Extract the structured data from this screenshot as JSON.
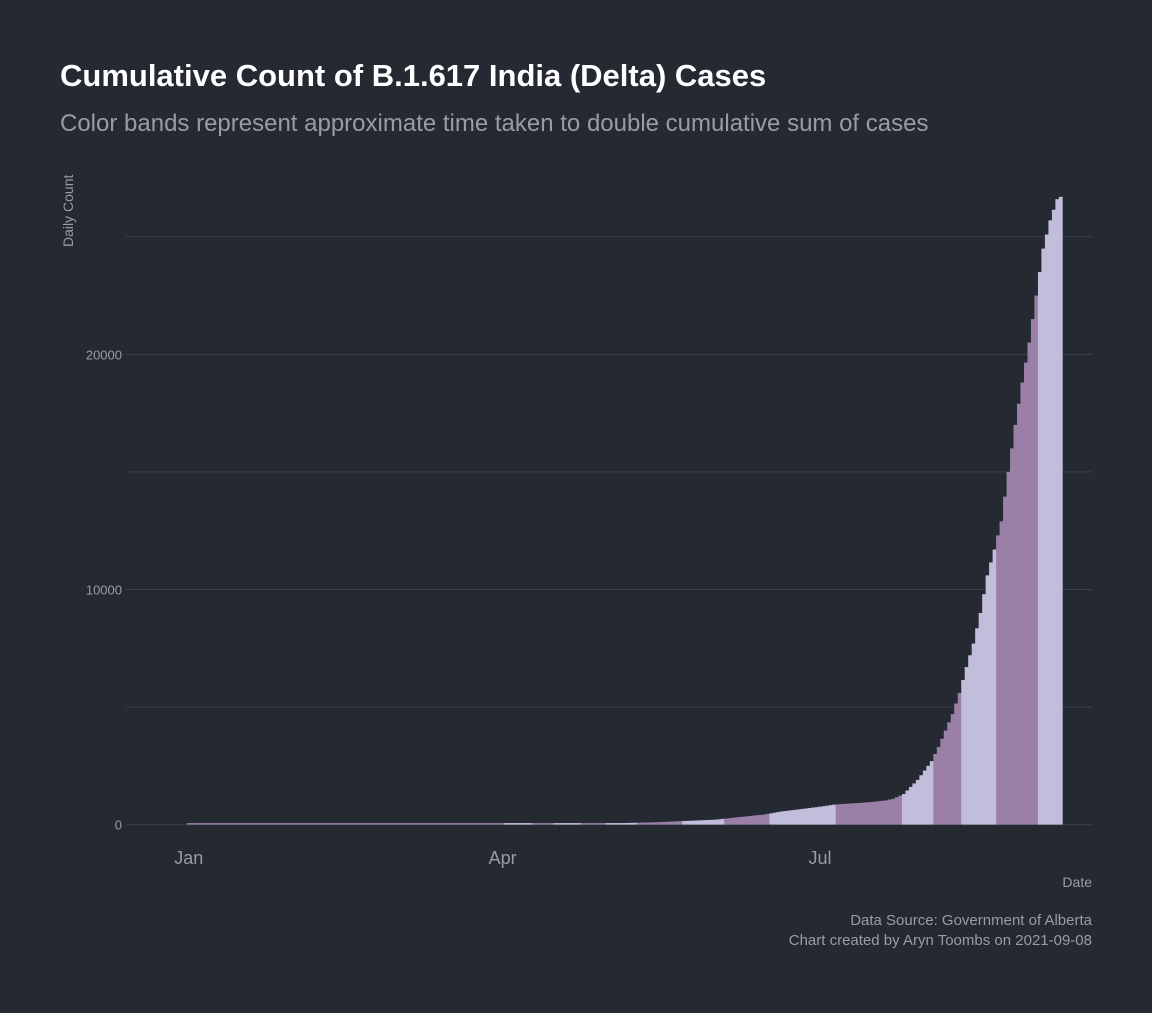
{
  "chart_data": {
    "type": "bar",
    "title": "Cumulative Count of B.1.617 India (Delta) Cases",
    "subtitle": "Color bands represent approximate time taken to double cumulative sum of cases",
    "xlabel": "Date",
    "ylabel": "Daily Count",
    "x_range": [
      "2021-01-01",
      "2021-09-08"
    ],
    "ylim": [
      -400,
      27500
    ],
    "y_ticks": [
      0,
      10000,
      20000
    ],
    "y_tick_labels": [
      "0",
      "10000",
      "20000"
    ],
    "y_minor_gridlines": [
      5000,
      15000,
      25000
    ],
    "x_ticks": [
      {
        "label": "Jan",
        "date": "2021-01-01"
      },
      {
        "label": "Apr",
        "date": "2021-04-01"
      },
      {
        "label": "Jul",
        "date": "2021-07-01"
      }
    ],
    "grid": true,
    "legend": "none",
    "band_colors": [
      "#9a80a7",
      "#c1bddb"
    ],
    "bands": [
      {
        "start": "2021-01-01",
        "end": "2021-04-02",
        "color_index": 0
      },
      {
        "start": "2021-04-02",
        "end": "2021-04-10",
        "color_index": 1
      },
      {
        "start": "2021-04-10",
        "end": "2021-04-16",
        "color_index": 0
      },
      {
        "start": "2021-04-16",
        "end": "2021-04-24",
        "color_index": 1
      },
      {
        "start": "2021-04-24",
        "end": "2021-05-01",
        "color_index": 0
      },
      {
        "start": "2021-05-01",
        "end": "2021-05-10",
        "color_index": 1
      },
      {
        "start": "2021-05-10",
        "end": "2021-05-23",
        "color_index": 0
      },
      {
        "start": "2021-05-23",
        "end": "2021-06-04",
        "color_index": 1
      },
      {
        "start": "2021-06-04",
        "end": "2021-06-17",
        "color_index": 0
      },
      {
        "start": "2021-06-17",
        "end": "2021-07-06",
        "color_index": 1
      },
      {
        "start": "2021-07-06",
        "end": "2021-07-25",
        "color_index": 0
      },
      {
        "start": "2021-07-25",
        "end": "2021-08-03",
        "color_index": 1
      },
      {
        "start": "2021-08-03",
        "end": "2021-08-11",
        "color_index": 0
      },
      {
        "start": "2021-08-11",
        "end": "2021-08-21",
        "color_index": 1
      },
      {
        "start": "2021-08-21",
        "end": "2021-09-02",
        "color_index": 0
      },
      {
        "start": "2021-09-02",
        "end": "2021-09-08",
        "color_index": 1
      }
    ],
    "series": [
      {
        "name": "Cumulative B.1.617 cases",
        "points": [
          [
            "2021-01-01",
            0
          ],
          [
            "2021-02-01",
            2
          ],
          [
            "2021-03-01",
            5
          ],
          [
            "2021-04-01",
            10
          ],
          [
            "2021-04-15",
            20
          ],
          [
            "2021-05-01",
            50
          ],
          [
            "2021-05-15",
            100
          ],
          [
            "2021-06-01",
            210
          ],
          [
            "2021-06-15",
            430
          ],
          [
            "2021-06-20",
            560
          ],
          [
            "2021-06-25",
            650
          ],
          [
            "2021-07-01",
            760
          ],
          [
            "2021-07-05",
            850
          ],
          [
            "2021-07-10",
            900
          ],
          [
            "2021-07-15",
            950
          ],
          [
            "2021-07-20",
            1030
          ],
          [
            "2021-07-22",
            1100
          ],
          [
            "2021-07-25",
            1300
          ],
          [
            "2021-07-27",
            1600
          ],
          [
            "2021-07-29",
            1900
          ],
          [
            "2021-07-31",
            2300
          ],
          [
            "2021-08-02",
            2700
          ],
          [
            "2021-08-04",
            3300
          ],
          [
            "2021-08-06",
            4000
          ],
          [
            "2021-08-08",
            4700
          ],
          [
            "2021-08-10",
            5600
          ],
          [
            "2021-08-12",
            6700
          ],
          [
            "2021-08-14",
            7700
          ],
          [
            "2021-08-16",
            9000
          ],
          [
            "2021-08-18",
            10600
          ],
          [
            "2021-08-20",
            11700
          ],
          [
            "2021-08-22",
            12900
          ],
          [
            "2021-08-24",
            15000
          ],
          [
            "2021-08-26",
            17000
          ],
          [
            "2021-08-28",
            18800
          ],
          [
            "2021-08-30",
            20500
          ],
          [
            "2021-09-01",
            22500
          ],
          [
            "2021-09-03",
            24500
          ],
          [
            "2021-09-05",
            25700
          ],
          [
            "2021-09-07",
            26600
          ],
          [
            "2021-09-08",
            26700
          ]
        ]
      }
    ]
  },
  "caption": {
    "source": "Data Source: Government of Alberta",
    "credit": "Chart created by Aryn Toombs on 2021-09-08"
  }
}
